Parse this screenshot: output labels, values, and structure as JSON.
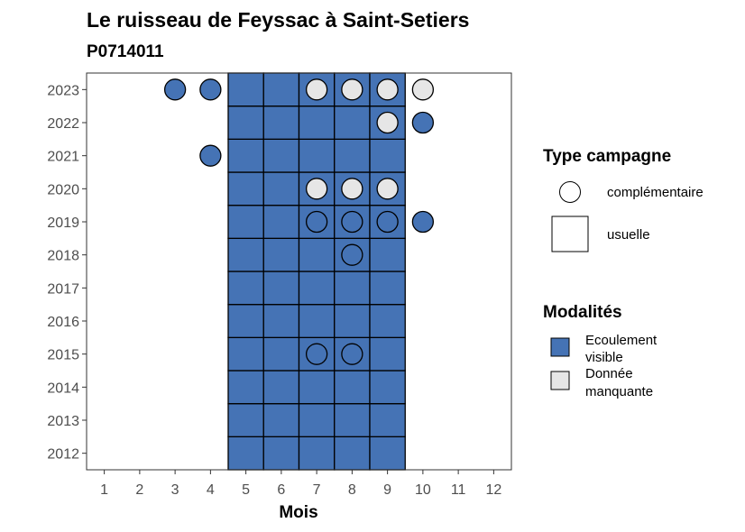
{
  "chart_data": {
    "type": "heatmap",
    "title": "Le ruisseau de Feyssac à Saint-Setiers",
    "subtitle": "P0714011",
    "xlabel": "Mois",
    "ylabel": "",
    "x_ticks": [
      1,
      2,
      3,
      4,
      5,
      6,
      7,
      8,
      9,
      10,
      11,
      12
    ],
    "y_ticks": [
      2012,
      2013,
      2014,
      2015,
      2016,
      2017,
      2018,
      2019,
      2020,
      2021,
      2022,
      2023
    ],
    "xlim": [
      0.5,
      12.5
    ],
    "ylim": [
      2011.5,
      2023.5
    ],
    "grid": false,
    "legend_position": "right",
    "colors": {
      "ecoulement_visible": "#4573b5",
      "donnee_manquante": "#e6e6e6",
      "stroke": "#000000"
    },
    "legend": {
      "type_campagne": {
        "title": "Type campagne",
        "entries": [
          {
            "key": "complementaire",
            "label": "complémentaire",
            "shape": "circle"
          },
          {
            "key": "usuelle",
            "label": "usuelle",
            "shape": "square"
          }
        ]
      },
      "modalites": {
        "title": "Modalités",
        "entries": [
          {
            "key": "ecoulement_visible",
            "label_lines": [
              "Ecoulement",
              "visible"
            ]
          },
          {
            "key": "donnee_manquante",
            "label_lines": [
              "Donnée",
              "manquante"
            ]
          }
        ]
      }
    },
    "tiles": {
      "campagne": "usuelle",
      "modalite": "ecoulement_visible",
      "months": [
        5,
        6,
        7,
        8,
        9
      ],
      "years": [
        2012,
        2013,
        2014,
        2015,
        2016,
        2017,
        2018,
        2019,
        2020,
        2021,
        2022,
        2023
      ]
    },
    "points": [
      {
        "year": 2023,
        "month": 3,
        "campagne": "complementaire",
        "modalite": "ecoulement_visible"
      },
      {
        "year": 2023,
        "month": 4,
        "campagne": "complementaire",
        "modalite": "ecoulement_visible"
      },
      {
        "year": 2023,
        "month": 7,
        "campagne": "complementaire",
        "modalite": "donnee_manquante"
      },
      {
        "year": 2023,
        "month": 8,
        "campagne": "complementaire",
        "modalite": "donnee_manquante"
      },
      {
        "year": 2023,
        "month": 9,
        "campagne": "complementaire",
        "modalite": "donnee_manquante"
      },
      {
        "year": 2023,
        "month": 10,
        "campagne": "complementaire",
        "modalite": "donnee_manquante"
      },
      {
        "year": 2022,
        "month": 9,
        "campagne": "complementaire",
        "modalite": "donnee_manquante"
      },
      {
        "year": 2022,
        "month": 10,
        "campagne": "complementaire",
        "modalite": "ecoulement_visible"
      },
      {
        "year": 2021,
        "month": 4,
        "campagne": "complementaire",
        "modalite": "ecoulement_visible"
      },
      {
        "year": 2020,
        "month": 7,
        "campagne": "complementaire",
        "modalite": "donnee_manquante"
      },
      {
        "year": 2020,
        "month": 8,
        "campagne": "complementaire",
        "modalite": "donnee_manquante"
      },
      {
        "year": 2020,
        "month": 9,
        "campagne": "complementaire",
        "modalite": "donnee_manquante"
      },
      {
        "year": 2019,
        "month": 7,
        "campagne": "complementaire",
        "modalite": "ecoulement_visible"
      },
      {
        "year": 2019,
        "month": 8,
        "campagne": "complementaire",
        "modalite": "ecoulement_visible"
      },
      {
        "year": 2019,
        "month": 9,
        "campagne": "complementaire",
        "modalite": "ecoulement_visible"
      },
      {
        "year": 2019,
        "month": 10,
        "campagne": "complementaire",
        "modalite": "ecoulement_visible"
      },
      {
        "year": 2018,
        "month": 8,
        "campagne": "complementaire",
        "modalite": "ecoulement_visible"
      },
      {
        "year": 2015,
        "month": 7,
        "campagne": "complementaire",
        "modalite": "ecoulement_visible"
      },
      {
        "year": 2015,
        "month": 8,
        "campagne": "complementaire",
        "modalite": "ecoulement_visible"
      }
    ]
  }
}
